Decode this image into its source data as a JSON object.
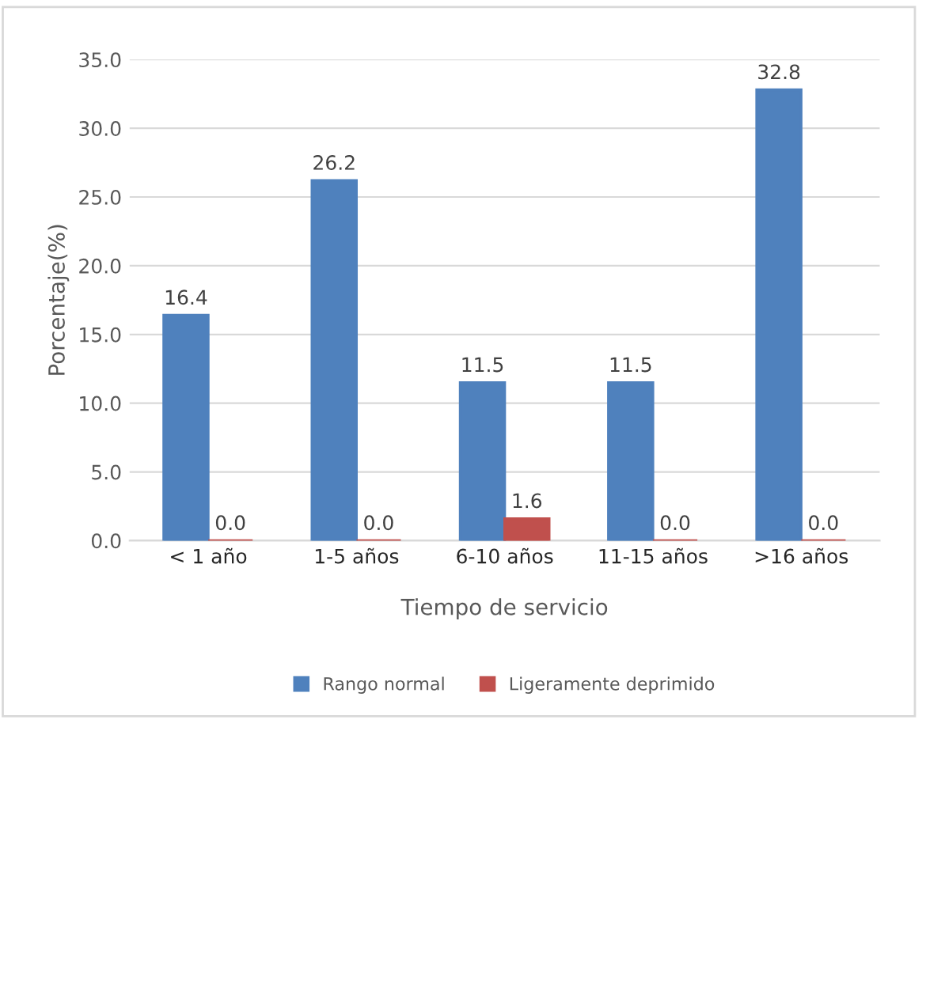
{
  "chart_data": {
    "type": "bar",
    "xlabel": "Tiempo de servicio",
    "ylabel": "Porcentaje(%)",
    "categories": [
      "< 1 año",
      "1-5 años",
      "6-10 años",
      "11-15 años",
      ">16 años"
    ],
    "series": [
      {
        "name": "Rango normal",
        "color": "#4f81bd",
        "values": [
          16.4,
          26.2,
          11.5,
          11.5,
          32.8
        ],
        "value_labels": [
          "16.4",
          "26.2",
          "11.5",
          "11.5",
          "32.8"
        ]
      },
      {
        "name": "Ligeramente deprimido",
        "color": "#c0504d",
        "values": [
          0,
          0,
          1.6,
          0,
          0
        ],
        "value_labels": [
          "0.0",
          "0.0",
          "1.6",
          "0.0",
          "0.0"
        ]
      }
    ],
    "ylim": [
      0,
      35
    ],
    "yticks": [
      {
        "value": 0,
        "label": "0.0"
      },
      {
        "value": 5,
        "label": "5.0"
      },
      {
        "value": 10,
        "label": "10.0"
      },
      {
        "value": 15,
        "label": "15.0"
      },
      {
        "value": 20,
        "label": "20.0"
      },
      {
        "value": 25,
        "label": "25.0"
      },
      {
        "value": 30,
        "label": "30.0"
      },
      {
        "value": 35,
        "label": "35.0"
      }
    ],
    "grid": "y",
    "legend": "bottom"
  }
}
